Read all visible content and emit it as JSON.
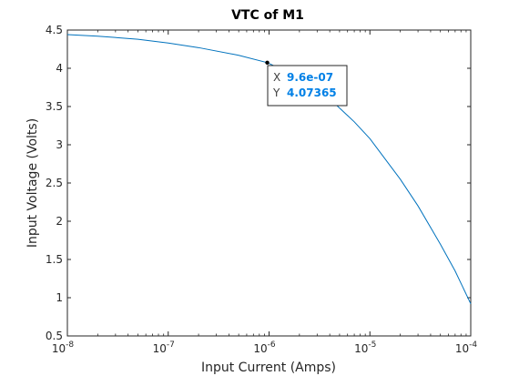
{
  "chart_data": {
    "type": "line",
    "title": "VTC of M1",
    "xlabel": "Input Current (Amps)",
    "ylabel": "Input Voltage (Volts)",
    "xscale": "log",
    "xlim": [
      1e-08,
      0.0001
    ],
    "ylim": [
      0.5,
      4.5
    ],
    "x_ticks": [
      {
        "value": 1e-08,
        "mantissa": "10",
        "exponent": "-8"
      },
      {
        "value": 1e-07,
        "mantissa": "10",
        "exponent": "-7"
      },
      {
        "value": 1e-06,
        "mantissa": "10",
        "exponent": "-6"
      },
      {
        "value": 1e-05,
        "mantissa": "10",
        "exponent": "-5"
      },
      {
        "value": 0.0001,
        "mantissa": "10",
        "exponent": "-4"
      }
    ],
    "y_ticks": [
      {
        "value": 0.5,
        "label": "0.5"
      },
      {
        "value": 1,
        "label": "1"
      },
      {
        "value": 1.5,
        "label": "1.5"
      },
      {
        "value": 2,
        "label": "2"
      },
      {
        "value": 2.5,
        "label": "2.5"
      },
      {
        "value": 3,
        "label": "3"
      },
      {
        "value": 3.5,
        "label": "3.5"
      },
      {
        "value": 4,
        "label": "4"
      },
      {
        "value": 4.5,
        "label": "4.5"
      }
    ],
    "grid": false,
    "series": [
      {
        "color": "#0072bd",
        "x": [
          1e-08,
          2e-08,
          5e-08,
          1e-07,
          2e-07,
          5e-07,
          9.6e-07,
          2e-06,
          4e-06,
          7e-06,
          1e-05,
          2e-05,
          3e-05,
          5e-05,
          7e-05,
          0.0001
        ],
        "y": [
          4.44,
          4.42,
          4.38,
          4.33,
          4.27,
          4.17,
          4.07365,
          3.88,
          3.6,
          3.3,
          3.08,
          2.55,
          2.2,
          1.7,
          1.35,
          0.92
        ]
      }
    ],
    "datatip": {
      "x": 9.6e-07,
      "y": 4.07365,
      "x_key": "X",
      "y_key": "Y",
      "x_text": "9.6e-07",
      "y_text": "4.07365",
      "value_color": "#0080e6"
    }
  }
}
